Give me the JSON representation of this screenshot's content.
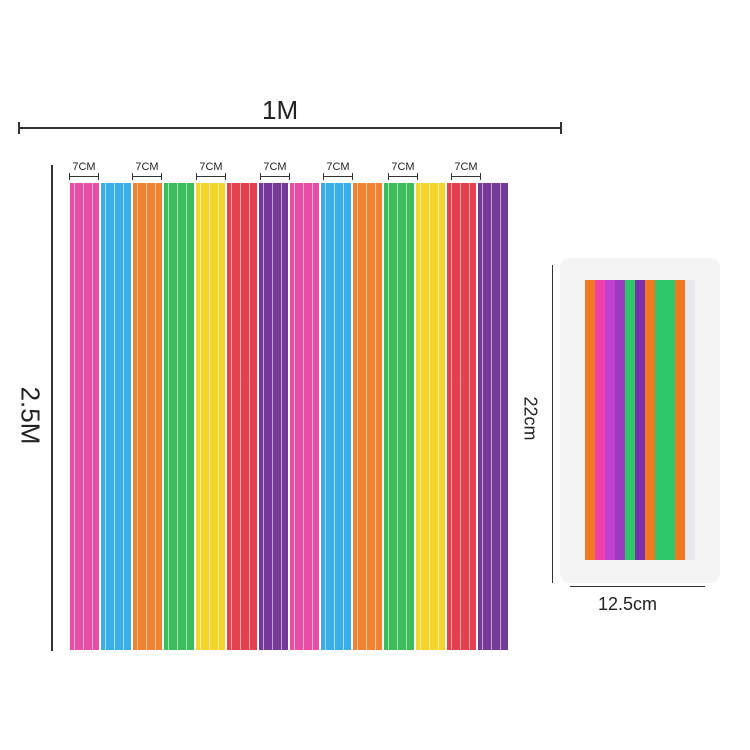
{
  "dimensions": {
    "width": "1M",
    "height": "2.5M",
    "strip_width": "7CM",
    "package_height": "22cm",
    "package_width": "12.5cm"
  },
  "strip_colors": [
    "#e83fa0",
    "#2aa8e8",
    "#f07820",
    "#2bb84c",
    "#f2d21a",
    "#e23040",
    "#6a2a90",
    "#e83fa0",
    "#2aa8e8",
    "#f07820",
    "#2bb84c",
    "#f2d21a",
    "#e23040",
    "#6a2a90"
  ],
  "package_colors": [
    "#f07820",
    "#f03fa8",
    "#c040d0",
    "#9a3bc0",
    "#2ec86a",
    "#7a30a8",
    "#f07820",
    "#2ec86a",
    "#2ec86a",
    "#f07820",
    "#e8e8ee"
  ]
}
